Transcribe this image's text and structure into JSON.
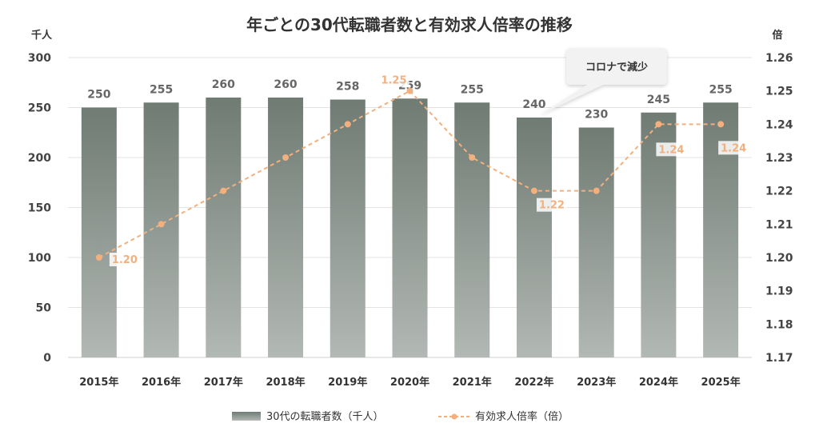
{
  "chart_data": {
    "type": "bar",
    "title": "年ごとの30代転職者数と有効求人倍率の推移",
    "categories": [
      "2015年",
      "2016年",
      "2017年",
      "2018年",
      "2019年",
      "2020年",
      "2021年",
      "2022年",
      "2023年",
      "2024年",
      "2025年"
    ],
    "series": [
      {
        "name": "30代の転職者数（千人）",
        "type": "bar",
        "axis": "left",
        "values": [
          250,
          255,
          260,
          260,
          258,
          259,
          255,
          240,
          230,
          245,
          255
        ],
        "color": "#6F7B73"
      },
      {
        "name": "有効求人倍率（倍）",
        "type": "line",
        "axis": "right",
        "values": [
          1.2,
          1.21,
          1.22,
          1.23,
          1.24,
          1.25,
          1.23,
          1.22,
          1.22,
          1.24,
          1.24
        ],
        "color": "#F2B07E"
      }
    ],
    "y_left": {
      "label": "千人",
      "ylim": [
        0,
        300
      ],
      "ticks": [
        "0",
        "50",
        "100",
        "150",
        "200",
        "250",
        "300"
      ]
    },
    "y_right": {
      "label": "倍",
      "ylim": [
        1.17,
        1.26
      ],
      "ticks": [
        "1.17",
        "1.18",
        "1.19",
        "1.20",
        "1.21",
        "1.22",
        "1.23",
        "1.24",
        "1.25",
        "1.26"
      ]
    },
    "line_labels": [
      {
        "index": 0,
        "text": "1.20"
      },
      {
        "index": 5,
        "text": "1.25"
      },
      {
        "index": 7,
        "text": "1.22"
      },
      {
        "index": 9,
        "text": "1.24"
      },
      {
        "index": 10,
        "text": "1.24"
      }
    ],
    "annotation": {
      "text": "コロナで減少",
      "index": 7
    },
    "grid": true,
    "legend_position": "bottom"
  }
}
